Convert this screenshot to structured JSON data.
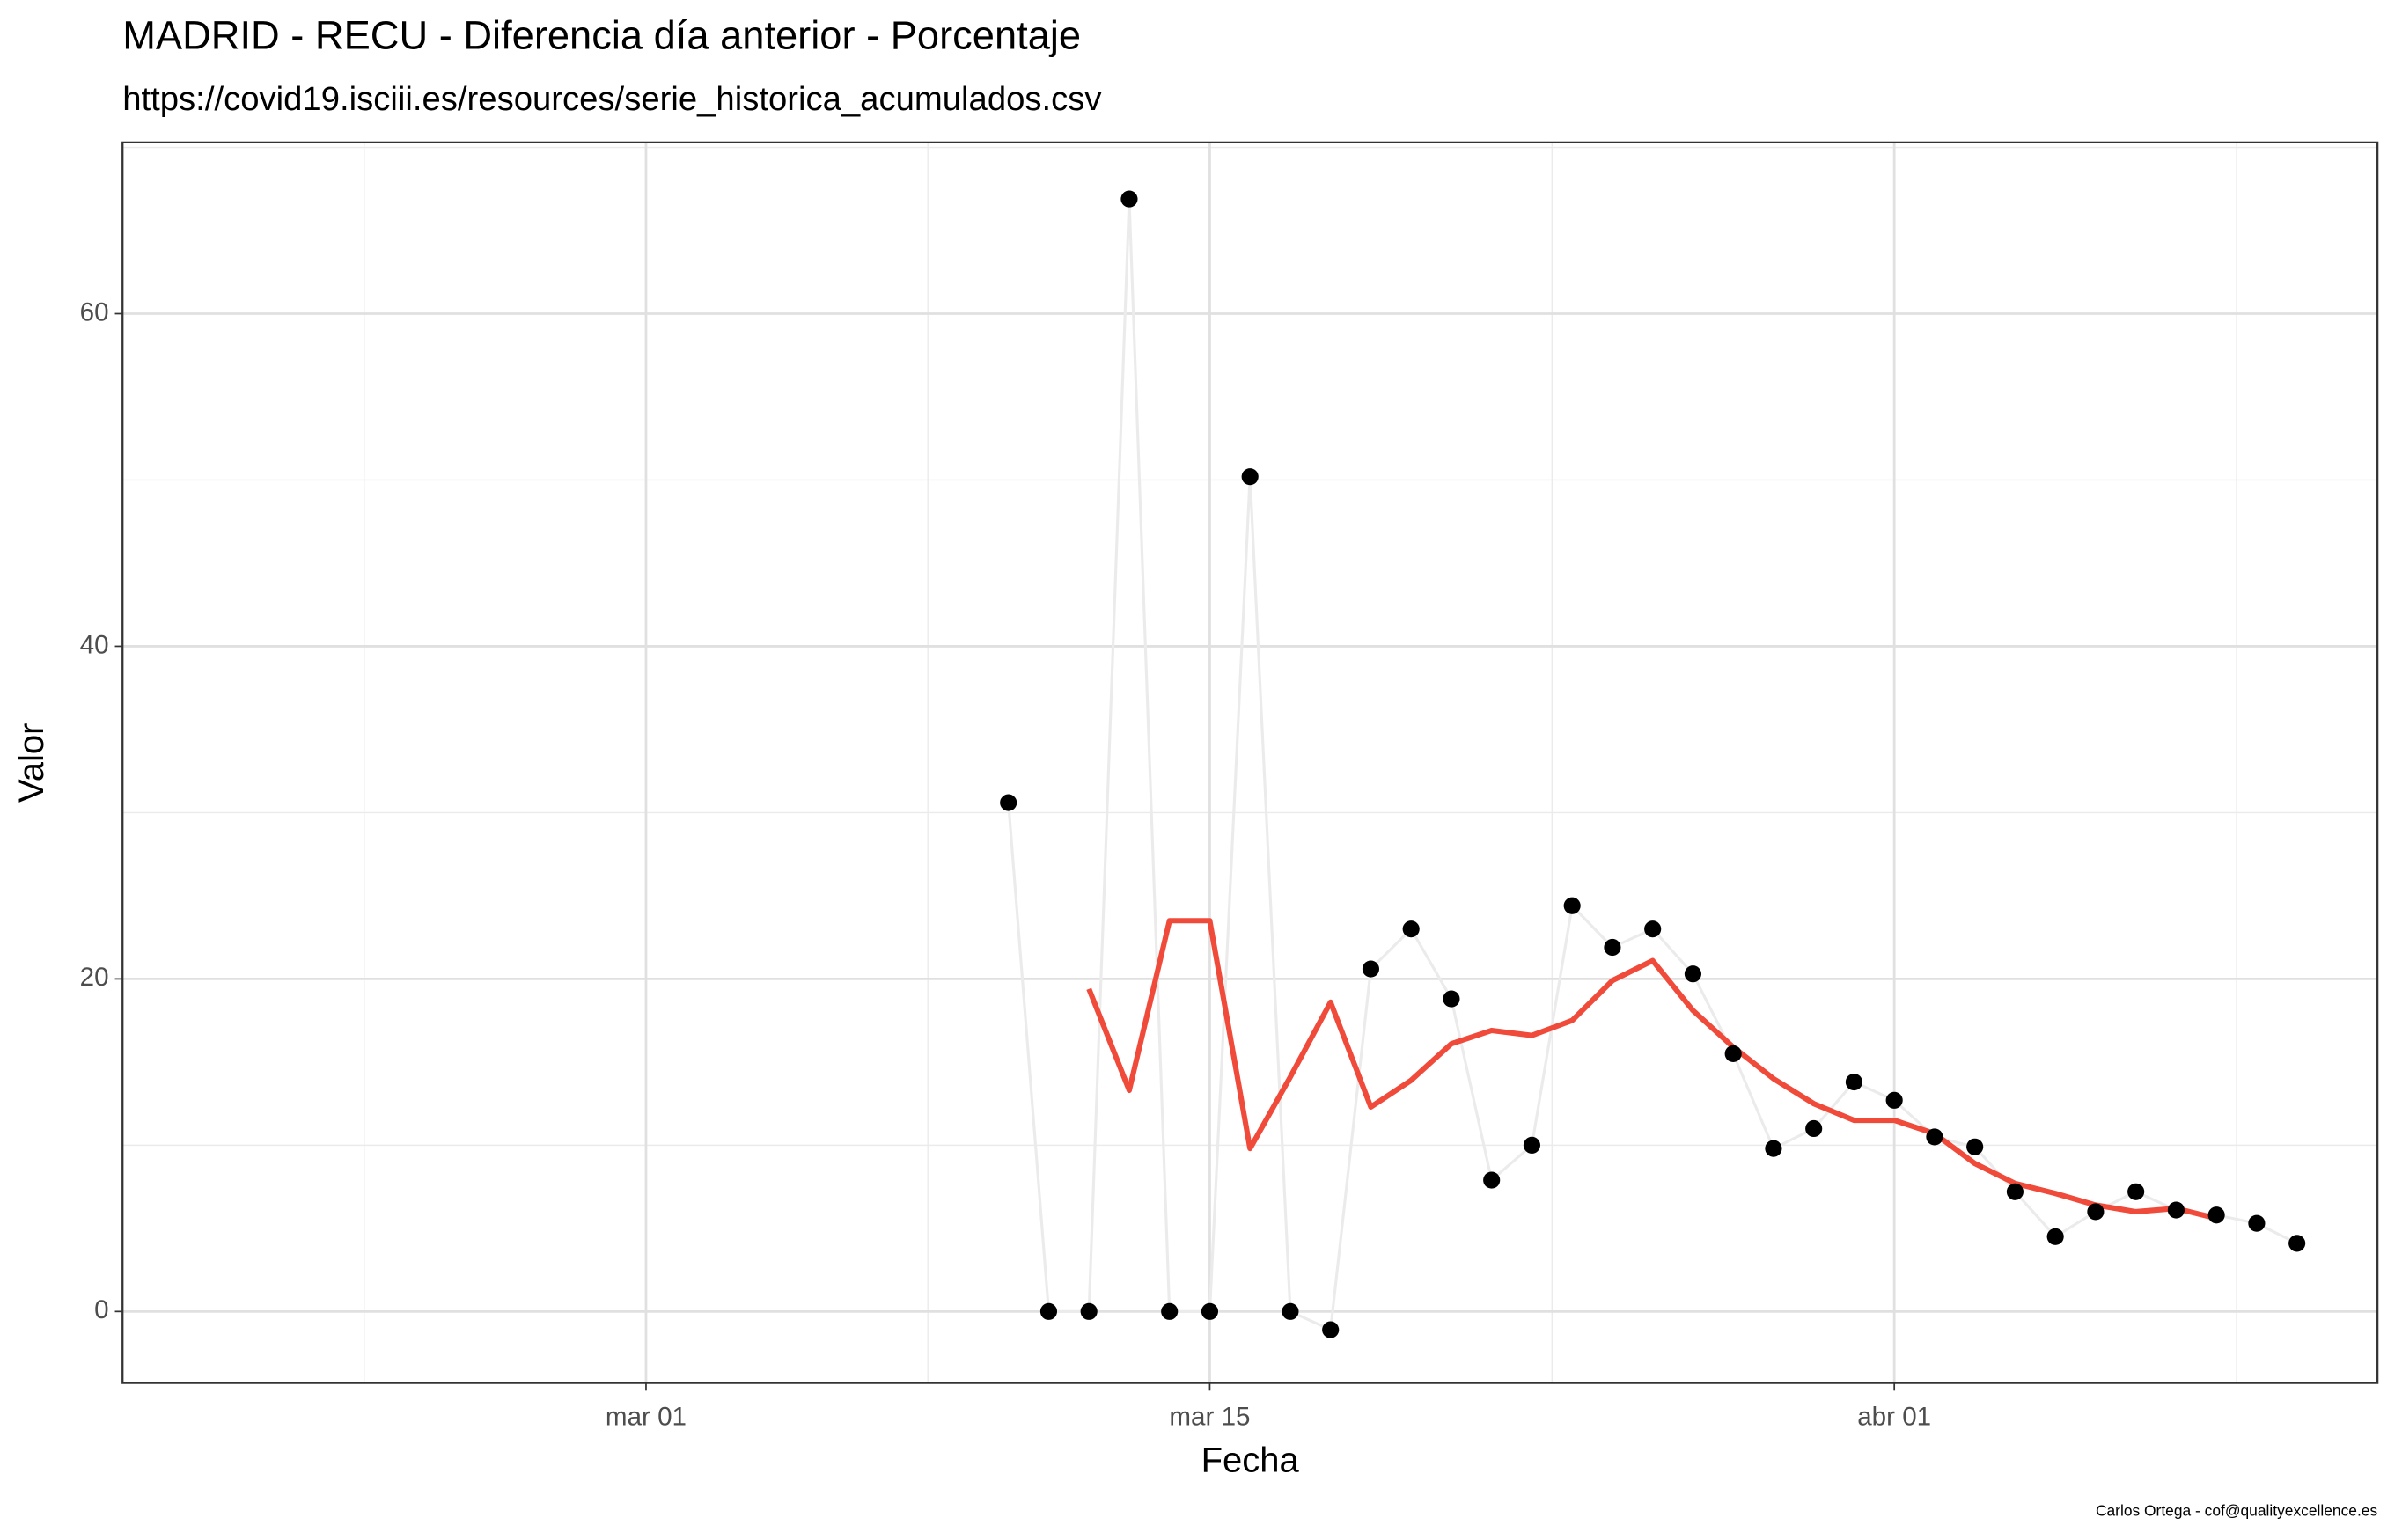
{
  "chart_data": {
    "type": "line",
    "title": "MADRID - RECU - Diferencia día anterior - Porcentaje",
    "subtitle": "https://covid19.isciii.es/resources/serie_historica_acumulados.csv",
    "x_label": "Fecha",
    "y_label": "Valor",
    "caption": "Carlos Ortega - cof@qualityexcellence.es",
    "x": [
      "03-10",
      "03-11",
      "03-12",
      "03-13",
      "03-14",
      "03-15",
      "03-16",
      "03-17",
      "03-18",
      "03-19",
      "03-20",
      "03-21",
      "03-22",
      "03-23",
      "03-24",
      "03-25",
      "03-26",
      "03-27",
      "03-28",
      "03-29",
      "03-30",
      "03-31",
      "04-01",
      "04-02",
      "04-03",
      "04-04",
      "04-05",
      "04-06",
      "04-07",
      "04-08",
      "04-09",
      "04-10",
      "04-11"
    ],
    "series": [
      {
        "color": "#000000",
        "line_color": "#ebebeb",
        "points": true,
        "values": [
          30.6,
          0,
          0,
          66.9,
          0,
          0,
          50.2,
          0,
          -1.1,
          20.6,
          23.0,
          18.8,
          7.9,
          10.0,
          24.4,
          21.9,
          23.0,
          20.3,
          15.5,
          9.8,
          11.0,
          13.8,
          12.7,
          10.5,
          9.9,
          7.2,
          4.5,
          6.0,
          7.2,
          6.1,
          5.8,
          5.3,
          4.1
        ]
      },
      {
        "color": "#f04a3a",
        "line_color": "#f04a3a",
        "points": false,
        "values": [
          null,
          null,
          19.4,
          13.3,
          23.5,
          23.5,
          9.8,
          14.1,
          18.6,
          12.3,
          13.9,
          16.1,
          16.9,
          16.6,
          17.5,
          19.9,
          21.1,
          18.1,
          15.9,
          14.0,
          12.5,
          11.5,
          11.5,
          10.7,
          8.9,
          7.7,
          7.1,
          6.4,
          6.0,
          6.2,
          5.6,
          null,
          null
        ]
      }
    ],
    "xlim": [
      "02-17",
      "04-13"
    ],
    "xticks": [
      {
        "value": "03-01",
        "label": "mar 01"
      },
      {
        "value": "03-15",
        "label": "mar 15"
      },
      {
        "value": "04-01",
        "label": "abr 01"
      }
    ],
    "ylim": [
      -4.3,
      70.3
    ],
    "yticks": [
      0,
      20,
      40,
      60
    ],
    "grid": true
  }
}
